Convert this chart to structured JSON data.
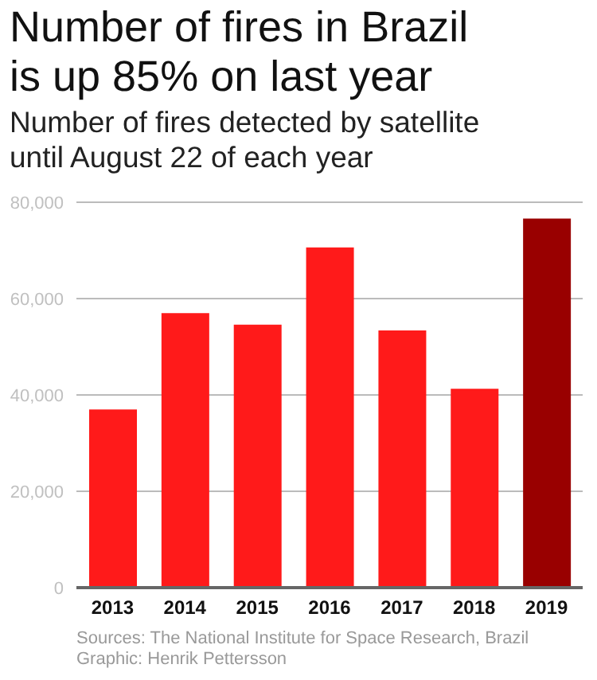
{
  "chart_data": {
    "type": "bar",
    "title": "Number of fires in Brazil is up 85% on last year",
    "subtitle": "Number of fires detected by satellite until August 22 of each year",
    "categories": [
      "2013",
      "2014",
      "2015",
      "2016",
      "2017",
      "2018",
      "2019"
    ],
    "values": [
      37000,
      57000,
      54600,
      70600,
      53400,
      41300,
      76600
    ],
    "colors": [
      "#ff1a1a",
      "#ff1a1a",
      "#ff1a1a",
      "#ff1a1a",
      "#ff1a1a",
      "#ff1a1a",
      "#990000"
    ],
    "ylim": [
      0,
      80000
    ],
    "yticks": [
      0,
      {
        "value": 20000,
        "label": "20,000"
      },
      {
        "value": 40000,
        "label": "40,000"
      },
      {
        "value": 60000,
        "label": "60,000"
      },
      {
        "value": 80000,
        "label": "80,000"
      }
    ],
    "grid": "y",
    "annotations": [
      "Sources: The National Institute for Space Research, Brazil",
      "Graphic: Henrik Pettersson"
    ]
  }
}
